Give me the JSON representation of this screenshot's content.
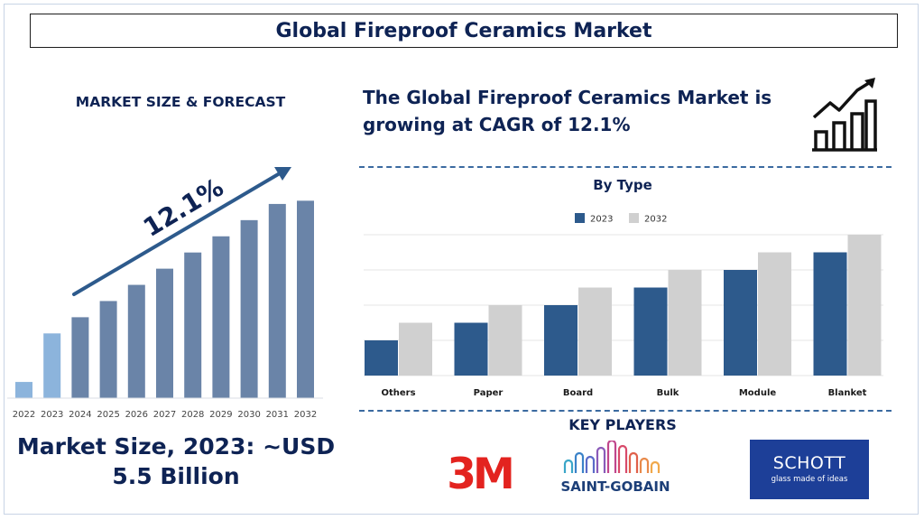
{
  "header": {
    "title": "Global Fireproof Ceramics Market"
  },
  "left_panel": {
    "heading": "MARKET SIZE & FORECAST",
    "market_size": "Market Size, 2023: ~USD 5.5 Billion"
  },
  "headline": "The Global Fireproof Ceramics Market is growing at CAGR of 12.1%",
  "icons": {
    "growth": "growth-chart-icon"
  },
  "key_players": {
    "heading": "KEY PLAYERS",
    "logos": {
      "m3": "3M",
      "saint_gobain": "SAINT-GOBAIN",
      "schott_name": "SCHOTT",
      "schott_tag": "glass made of ideas"
    }
  },
  "colors": {
    "navy": "#0e2354",
    "bar_blue": "#6a84a8",
    "bar_light": "#8cb4dc",
    "series_2023": "#2d5a8c",
    "series_2032": "#d0d0d0",
    "logo_red": "#e3231f",
    "schott_blue": "#1d3f98"
  },
  "chart_data": [
    {
      "type": "bar",
      "title": "",
      "categories": [
        "2022",
        "2023",
        "2024",
        "2025",
        "2026",
        "2027",
        "2028",
        "2029",
        "2030",
        "2031",
        "2032"
      ],
      "values": [
        1,
        4,
        5,
        6,
        7,
        8,
        9,
        10,
        11,
        12,
        12.2
      ],
      "annotation": "12.1%",
      "ylim": [
        0,
        13
      ],
      "grid": false,
      "axis_labels": false
    },
    {
      "type": "bar",
      "title": "By Type",
      "categories": [
        "Others",
        "Paper",
        "Board",
        "Bulk",
        "Module",
        "Blanket"
      ],
      "series": [
        {
          "name": "2023",
          "values": [
            1,
            1.5,
            2,
            2.5,
            3,
            3.5
          ]
        },
        {
          "name": "2032",
          "values": [
            1.5,
            2,
            2.5,
            3,
            3.5,
            4
          ]
        }
      ],
      "ylim": [
        0,
        4
      ],
      "grid": true,
      "legend": "top-center"
    }
  ]
}
